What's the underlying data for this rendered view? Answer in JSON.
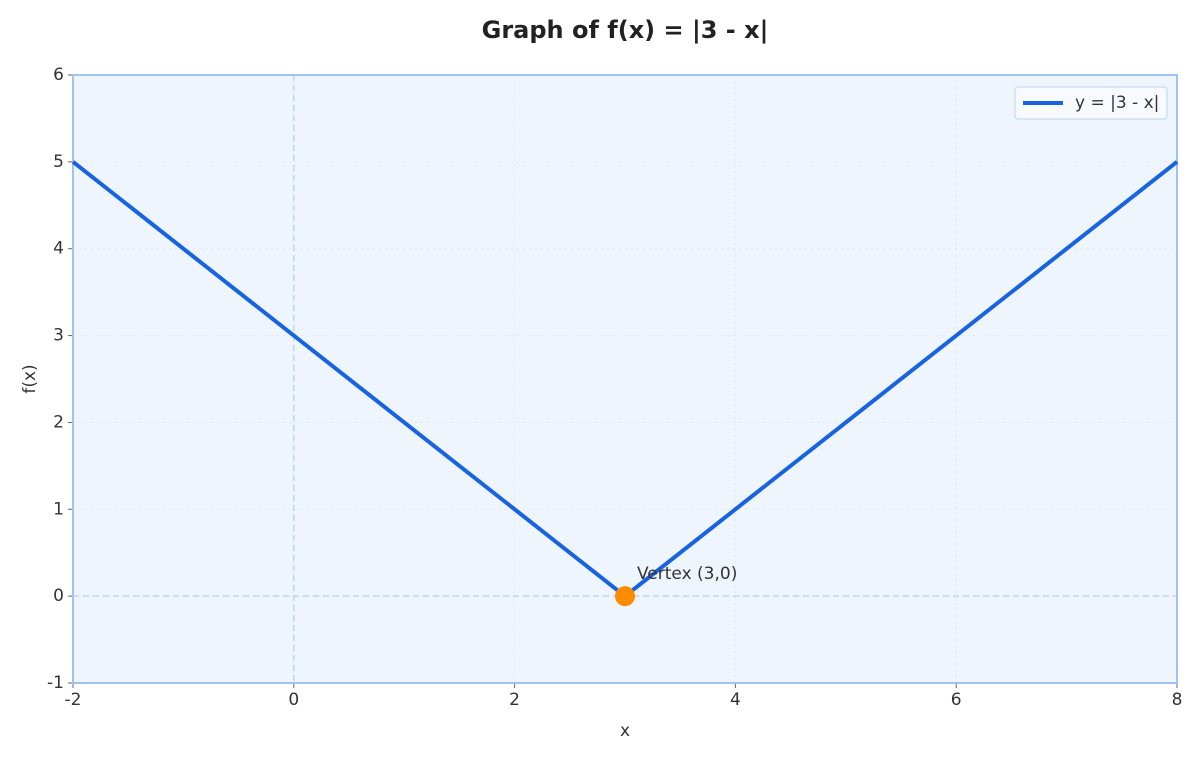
{
  "chart_data": {
    "type": "line",
    "title": "Graph of f(x) = |3 - x|",
    "xlabel": "x",
    "ylabel": "f(x)",
    "x": [
      -2,
      3,
      8
    ],
    "series": [
      {
        "name": "y = |3 - x|",
        "color": "#1763e3",
        "values": [
          5,
          0,
          5
        ]
      }
    ],
    "markers": [
      {
        "x": 3,
        "y": 0,
        "label": "Vertex (3,0)",
        "color": "#ff8c00"
      }
    ],
    "reference_lines": {
      "x": [
        0
      ],
      "y": [
        0
      ]
    },
    "xlim": [
      -2,
      8
    ],
    "xticks": [
      -2,
      0,
      2,
      4,
      6,
      8
    ],
    "ylim": [
      -1,
      6
    ],
    "yticks": [
      -1,
      0,
      1,
      2,
      3,
      4,
      5,
      6
    ],
    "grid": true,
    "legend": "upper-right"
  }
}
